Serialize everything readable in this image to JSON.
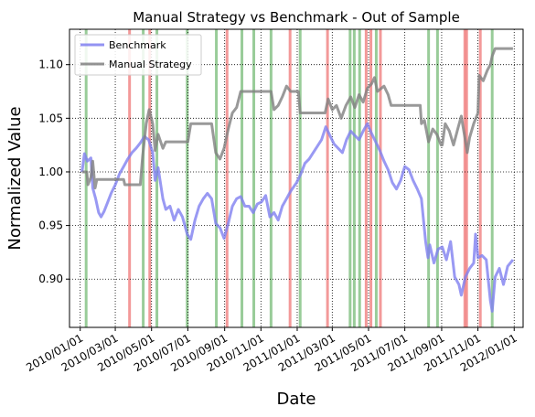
{
  "chart_data": {
    "type": "line",
    "title": "Manual Strategy vs Benchmark - Out of Sample",
    "xlabel": "Date",
    "ylabel": "Normalized Value",
    "xlim": [
      "2009-12-14",
      "2012-01-16"
    ],
    "ylim": [
      0.855,
      1.133
    ],
    "x_ticks": [
      "2010/01/01",
      "2010/03/01",
      "2010/05/01",
      "2010/07/01",
      "2010/09/01",
      "2010/11/01",
      "2011/01/01",
      "2011/03/01",
      "2011/05/01",
      "2011/07/01",
      "2011/09/01",
      "2011/11/01",
      "2012/01/01"
    ],
    "y_ticks": [
      "0.90",
      "0.95",
      "1.00",
      "1.05",
      "1.10"
    ],
    "grid": true,
    "legend_position": "top-left",
    "series": [
      {
        "name": "Benchmark",
        "color": "#8080f0",
        "points": [
          [
            "2010-01-04",
            1.0
          ],
          [
            "2010-01-08",
            1.017
          ],
          [
            "2010-01-13",
            1.01
          ],
          [
            "2010-01-19",
            1.013
          ],
          [
            "2010-01-22",
            0.985
          ],
          [
            "2010-01-27",
            0.975
          ],
          [
            "2010-02-01",
            0.962
          ],
          [
            "2010-02-05",
            0.958
          ],
          [
            "2010-02-10",
            0.963
          ],
          [
            "2010-02-15",
            0.97
          ],
          [
            "2010-02-22",
            0.98
          ],
          [
            "2010-03-01",
            0.988
          ],
          [
            "2010-03-08",
            0.998
          ],
          [
            "2010-03-15",
            1.005
          ],
          [
            "2010-03-22",
            1.012
          ],
          [
            "2010-03-29",
            1.018
          ],
          [
            "2010-04-05",
            1.022
          ],
          [
            "2010-04-12",
            1.027
          ],
          [
            "2010-04-19",
            1.033
          ],
          [
            "2010-04-26",
            1.03
          ],
          [
            "2010-05-03",
            1.018
          ],
          [
            "2010-05-07",
            0.992
          ],
          [
            "2010-05-12",
            1.004
          ],
          [
            "2010-05-20",
            0.975
          ],
          [
            "2010-05-25",
            0.965
          ],
          [
            "2010-06-01",
            0.968
          ],
          [
            "2010-06-08",
            0.955
          ],
          [
            "2010-06-15",
            0.965
          ],
          [
            "2010-06-22",
            0.958
          ],
          [
            "2010-06-30",
            0.942
          ],
          [
            "2010-07-06",
            0.937
          ],
          [
            "2010-07-13",
            0.955
          ],
          [
            "2010-07-20",
            0.968
          ],
          [
            "2010-07-27",
            0.975
          ],
          [
            "2010-08-03",
            0.98
          ],
          [
            "2010-08-10",
            0.975
          ],
          [
            "2010-08-17",
            0.952
          ],
          [
            "2010-08-24",
            0.948
          ],
          [
            "2010-08-31",
            0.938
          ],
          [
            "2010-09-07",
            0.952
          ],
          [
            "2010-09-14",
            0.968
          ],
          [
            "2010-09-21",
            0.975
          ],
          [
            "2010-09-28",
            0.977
          ],
          [
            "2010-10-05",
            0.968
          ],
          [
            "2010-10-12",
            0.968
          ],
          [
            "2010-10-19",
            0.962
          ],
          [
            "2010-10-26",
            0.97
          ],
          [
            "2010-11-02",
            0.972
          ],
          [
            "2010-11-09",
            0.978
          ],
          [
            "2010-11-16",
            0.958
          ],
          [
            "2010-11-23",
            0.962
          ],
          [
            "2010-11-30",
            0.955
          ],
          [
            "2010-12-07",
            0.968
          ],
          [
            "2010-12-14",
            0.975
          ],
          [
            "2010-12-21",
            0.982
          ],
          [
            "2010-12-31",
            0.99
          ],
          [
            "2011-01-07",
            0.998
          ],
          [
            "2011-01-14",
            1.008
          ],
          [
            "2011-01-21",
            1.012
          ],
          [
            "2011-01-28",
            1.018
          ],
          [
            "2011-02-04",
            1.024
          ],
          [
            "2011-02-11",
            1.03
          ],
          [
            "2011-02-18",
            1.042
          ],
          [
            "2011-02-25",
            1.034
          ],
          [
            "2011-03-04",
            1.026
          ],
          [
            "2011-03-11",
            1.022
          ],
          [
            "2011-03-18",
            1.018
          ],
          [
            "2011-03-25",
            1.03
          ],
          [
            "2011-04-01",
            1.038
          ],
          [
            "2011-04-08",
            1.034
          ],
          [
            "2011-04-15",
            1.03
          ],
          [
            "2011-04-22",
            1.038
          ],
          [
            "2011-04-29",
            1.045
          ],
          [
            "2011-05-06",
            1.036
          ],
          [
            "2011-05-13",
            1.028
          ],
          [
            "2011-05-20",
            1.02
          ],
          [
            "2011-05-27",
            1.01
          ],
          [
            "2011-06-03",
            1.002
          ],
          [
            "2011-06-10",
            0.99
          ],
          [
            "2011-06-17",
            0.984
          ],
          [
            "2011-06-24",
            0.992
          ],
          [
            "2011-07-01",
            1.005
          ],
          [
            "2011-07-08",
            1.002
          ],
          [
            "2011-07-15",
            0.992
          ],
          [
            "2011-07-22",
            0.984
          ],
          [
            "2011-07-29",
            0.975
          ],
          [
            "2011-08-05",
            0.935
          ],
          [
            "2011-08-09",
            0.92
          ],
          [
            "2011-08-12",
            0.932
          ],
          [
            "2011-08-19",
            0.915
          ],
          [
            "2011-08-26",
            0.928
          ],
          [
            "2011-09-02",
            0.93
          ],
          [
            "2011-09-09",
            0.918
          ],
          [
            "2011-09-16",
            0.935
          ],
          [
            "2011-09-23",
            0.902
          ],
          [
            "2011-09-30",
            0.895
          ],
          [
            "2011-10-04",
            0.885
          ],
          [
            "2011-10-11",
            0.902
          ],
          [
            "2011-10-18",
            0.91
          ],
          [
            "2011-10-25",
            0.915
          ],
          [
            "2011-10-28",
            0.942
          ],
          [
            "2011-11-01",
            0.92
          ],
          [
            "2011-11-08",
            0.922
          ],
          [
            "2011-11-15",
            0.918
          ],
          [
            "2011-11-22",
            0.88
          ],
          [
            "2011-11-25",
            0.87
          ],
          [
            "2011-11-30",
            0.902
          ],
          [
            "2011-12-07",
            0.91
          ],
          [
            "2011-12-14",
            0.895
          ],
          [
            "2011-12-21",
            0.912
          ],
          [
            "2011-12-30",
            0.918
          ]
        ]
      },
      {
        "name": "Manual Strategy",
        "color": "#808080",
        "points": [
          [
            "2010-01-04",
            1.0
          ],
          [
            "2010-01-12",
            1.0
          ],
          [
            "2010-01-14",
            0.988
          ],
          [
            "2010-01-19",
            0.995
          ],
          [
            "2010-01-22",
            1.01
          ],
          [
            "2010-01-26",
            0.985
          ],
          [
            "2010-01-29",
            0.993
          ],
          [
            "2010-03-15",
            0.993
          ],
          [
            "2010-03-17",
            0.988
          ],
          [
            "2010-04-12",
            0.988
          ],
          [
            "2010-04-16",
            1.015
          ],
          [
            "2010-04-22",
            1.045
          ],
          [
            "2010-04-27",
            1.058
          ],
          [
            "2010-05-03",
            1.045
          ],
          [
            "2010-05-07",
            1.02
          ],
          [
            "2010-05-12",
            1.035
          ],
          [
            "2010-05-20",
            1.022
          ],
          [
            "2010-05-25",
            1.028
          ],
          [
            "2010-07-01",
            1.028
          ],
          [
            "2010-07-06",
            1.045
          ],
          [
            "2010-08-10",
            1.045
          ],
          [
            "2010-08-17",
            1.018
          ],
          [
            "2010-08-24",
            1.012
          ],
          [
            "2010-08-31",
            1.022
          ],
          [
            "2010-09-07",
            1.04
          ],
          [
            "2010-09-14",
            1.055
          ],
          [
            "2010-09-21",
            1.06
          ],
          [
            "2010-09-28",
            1.075
          ],
          [
            "2010-11-18",
            1.075
          ],
          [
            "2010-11-23",
            1.058
          ],
          [
            "2010-11-30",
            1.062
          ],
          [
            "2010-12-07",
            1.07
          ],
          [
            "2010-12-14",
            1.08
          ],
          [
            "2010-12-21",
            1.075
          ],
          [
            "2011-01-03",
            1.075
          ],
          [
            "2011-01-06",
            1.055
          ],
          [
            "2011-02-17",
            1.055
          ],
          [
            "2011-02-22",
            1.068
          ],
          [
            "2011-03-01",
            1.058
          ],
          [
            "2011-03-08",
            1.062
          ],
          [
            "2011-03-16",
            1.05
          ],
          [
            "2011-03-24",
            1.062
          ],
          [
            "2011-04-01",
            1.07
          ],
          [
            "2011-04-08",
            1.06
          ],
          [
            "2011-04-15",
            1.072
          ],
          [
            "2011-04-22",
            1.065
          ],
          [
            "2011-04-29",
            1.078
          ],
          [
            "2011-05-06",
            1.082
          ],
          [
            "2011-05-11",
            1.088
          ],
          [
            "2011-05-16",
            1.075
          ],
          [
            "2011-05-27",
            1.08
          ],
          [
            "2011-06-03",
            1.072
          ],
          [
            "2011-06-08",
            1.062
          ],
          [
            "2011-07-27",
            1.062
          ],
          [
            "2011-07-29",
            1.045
          ],
          [
            "2011-08-03",
            1.048
          ],
          [
            "2011-08-10",
            1.028
          ],
          [
            "2011-08-17",
            1.04
          ],
          [
            "2011-08-24",
            1.035
          ],
          [
            "2011-08-31",
            1.025
          ],
          [
            "2011-09-02",
            1.025
          ],
          [
            "2011-09-07",
            1.045
          ],
          [
            "2011-09-14",
            1.038
          ],
          [
            "2011-09-21",
            1.025
          ],
          [
            "2011-09-28",
            1.04
          ],
          [
            "2011-10-04",
            1.052
          ],
          [
            "2011-10-10",
            1.032
          ],
          [
            "2011-10-14",
            1.018
          ],
          [
            "2011-10-18",
            1.032
          ],
          [
            "2011-10-25",
            1.045
          ],
          [
            "2011-11-01",
            1.055
          ],
          [
            "2011-11-03",
            1.09
          ],
          [
            "2011-11-10",
            1.085
          ],
          [
            "2011-11-17",
            1.095
          ],
          [
            "2011-11-22",
            1.1
          ],
          [
            "2011-11-25",
            1.108
          ],
          [
            "2011-11-30",
            1.115
          ],
          [
            "2011-12-30",
            1.115
          ]
        ]
      }
    ],
    "buy_signals": [
      "2010-01-11",
      "2010-04-17",
      "2010-05-10",
      "2010-06-30",
      "2010-08-18",
      "2010-09-30",
      "2010-10-20",
      "2010-11-18",
      "2011-01-06",
      "2011-03-31",
      "2011-04-07",
      "2011-04-16",
      "2011-05-14",
      "2011-08-10",
      "2011-08-25",
      "2011-11-25"
    ],
    "sell_signals": [
      "2010-03-25",
      "2010-04-28",
      "2010-09-05",
      "2010-12-20",
      "2011-02-21",
      "2011-04-27",
      "2011-05-05",
      "2011-05-21",
      "2011-10-10",
      "2011-10-13",
      "2011-11-05"
    ],
    "buy_color": "#7fbf7f",
    "sell_color": "#f08080"
  }
}
